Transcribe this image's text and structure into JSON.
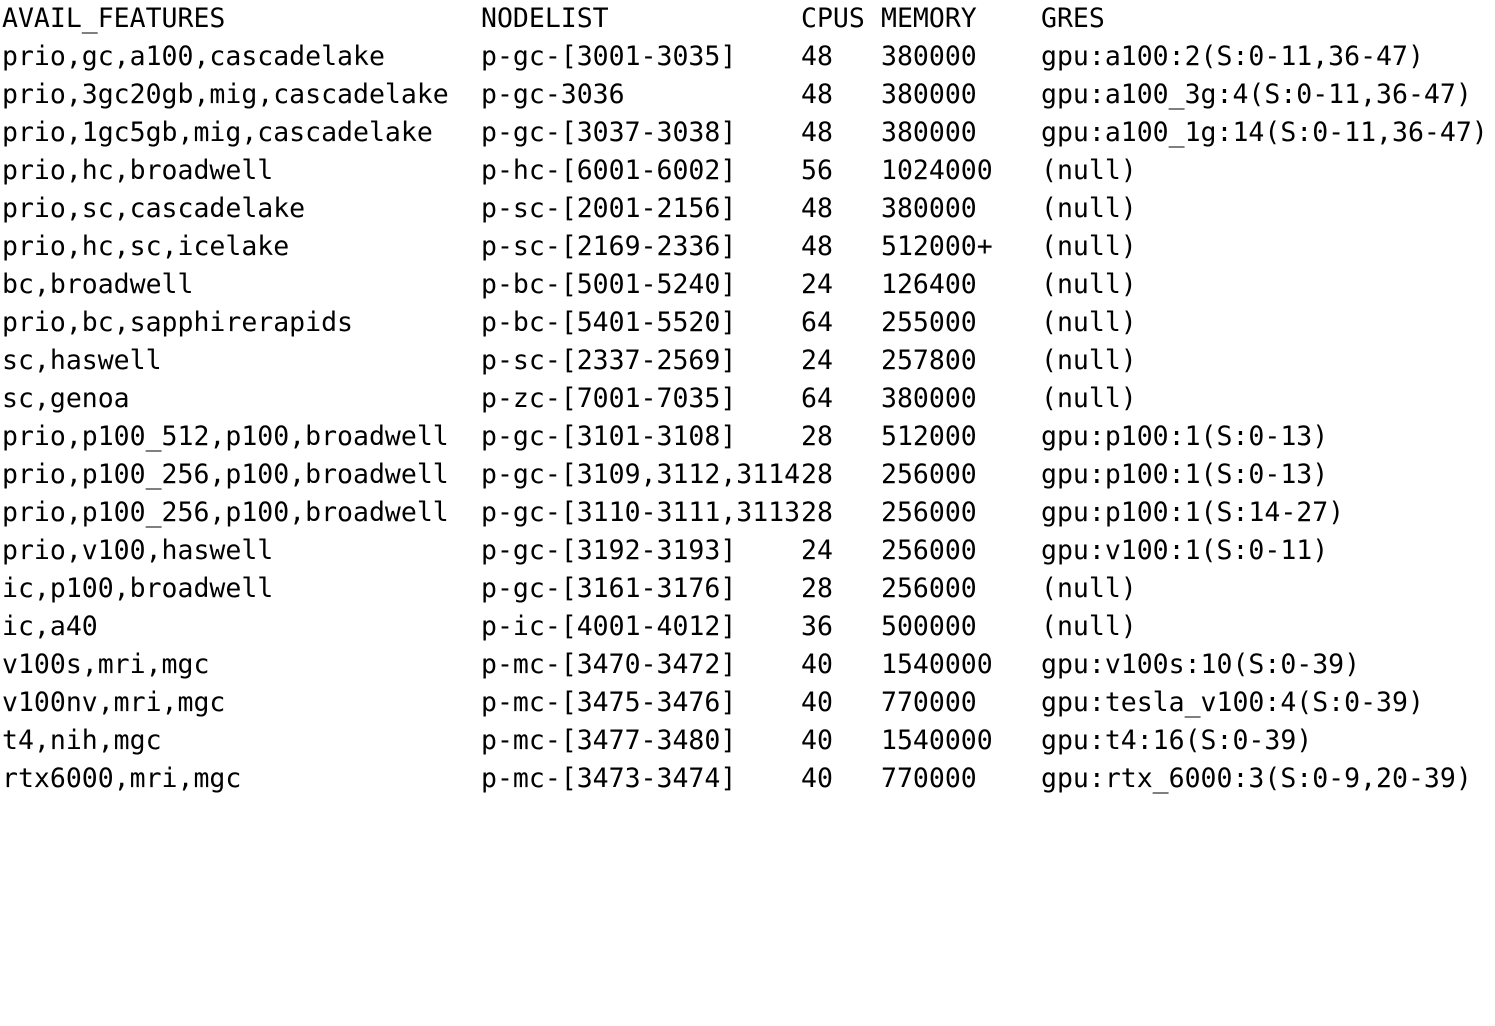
{
  "columns": {
    "avail_features": "AVAIL_FEATURES",
    "nodelist": "NODELIST",
    "cpus": "CPUS",
    "memory": "MEMORY",
    "gres": "GRES"
  },
  "rows": [
    {
      "features": "prio,gc,a100,cascadelake",
      "nodelist": "p-gc-[3001-3035]",
      "cpus": "48",
      "memory": "380000",
      "gres": "gpu:a100:2(S:0-11,36-47)"
    },
    {
      "features": "prio,3gc20gb,mig,cascadelake",
      "nodelist": "p-gc-3036",
      "cpus": "48",
      "memory": "380000",
      "gres": "gpu:a100_3g:4(S:0-11,36-47)"
    },
    {
      "features": "prio,1gc5gb,mig,cascadelake",
      "nodelist": "p-gc-[3037-3038]",
      "cpus": "48",
      "memory": "380000",
      "gres": "gpu:a100_1g:14(S:0-11,36-47)"
    },
    {
      "features": "prio,hc,broadwell",
      "nodelist": "p-hc-[6001-6002]",
      "cpus": "56",
      "memory": "1024000",
      "gres": "(null)"
    },
    {
      "features": "prio,sc,cascadelake",
      "nodelist": "p-sc-[2001-2156]",
      "cpus": "48",
      "memory": "380000",
      "gres": "(null)"
    },
    {
      "features": "prio,hc,sc,icelake",
      "nodelist": "p-sc-[2169-2336]",
      "cpus": "48",
      "memory": "512000+",
      "gres": "(null)"
    },
    {
      "features": "bc,broadwell",
      "nodelist": "p-bc-[5001-5240]",
      "cpus": "24",
      "memory": "126400",
      "gres": "(null)"
    },
    {
      "features": "prio,bc,sapphirerapids",
      "nodelist": "p-bc-[5401-5520]",
      "cpus": "64",
      "memory": "255000",
      "gres": "(null)"
    },
    {
      "features": "sc,haswell",
      "nodelist": "p-sc-[2337-2569]",
      "cpus": "24",
      "memory": "257800",
      "gres": "(null)"
    },
    {
      "features": "sc,genoa",
      "nodelist": "p-zc-[7001-7035]",
      "cpus": "64",
      "memory": "380000",
      "gres": "(null)"
    },
    {
      "features": "prio,p100_512,p100,broadwell",
      "nodelist": "p-gc-[3101-3108]",
      "cpus": "28",
      "memory": "512000",
      "gres": "gpu:p100:1(S:0-13)"
    },
    {
      "features": "prio,p100_256,p100,broadwell",
      "nodelist": "p-gc-[3109,3112,3114",
      "cpus": "28",
      "memory": "256000",
      "gres": "gpu:p100:1(S:0-13)"
    },
    {
      "features": "prio,p100_256,p100,broadwell",
      "nodelist": "p-gc-[3110-3111,3113",
      "cpus": "28",
      "memory": "256000",
      "gres": "gpu:p100:1(S:14-27)"
    },
    {
      "features": "prio,v100,haswell",
      "nodelist": "p-gc-[3192-3193]",
      "cpus": "24",
      "memory": "256000",
      "gres": "gpu:v100:1(S:0-11)"
    },
    {
      "features": "ic,p100,broadwell",
      "nodelist": "p-gc-[3161-3176]",
      "cpus": "28",
      "memory": "256000",
      "gres": "(null)"
    },
    {
      "features": "ic,a40",
      "nodelist": "p-ic-[4001-4012]",
      "cpus": "36",
      "memory": "500000",
      "gres": "(null)"
    },
    {
      "features": "v100s,mri,mgc",
      "nodelist": "p-mc-[3470-3472]",
      "cpus": "40",
      "memory": "1540000",
      "gres": "gpu:v100s:10(S:0-39)"
    },
    {
      "features": "v100nv,mri,mgc",
      "nodelist": "p-mc-[3475-3476]",
      "cpus": "40",
      "memory": "770000",
      "gres": "gpu:tesla_v100:4(S:0-39)"
    },
    {
      "features": "t4,nih,mgc",
      "nodelist": "p-mc-[3477-3480]",
      "cpus": "40",
      "memory": "1540000",
      "gres": "gpu:t4:16(S:0-39)"
    },
    {
      "features": "rtx6000,mri,mgc",
      "nodelist": "p-mc-[3473-3474]",
      "cpus": "40",
      "memory": "770000",
      "gres": "gpu:rtx_6000:3(S:0-9,20-39)"
    }
  ]
}
